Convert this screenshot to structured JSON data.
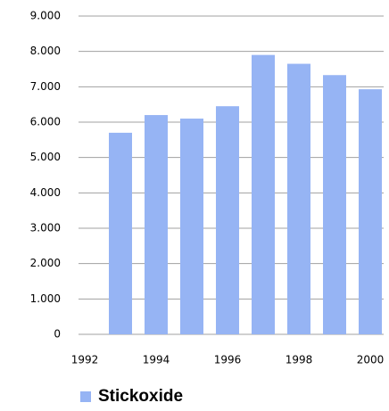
{
  "chart_data": {
    "type": "bar",
    "x": [
      1993,
      1994,
      1995,
      1996,
      1997,
      1998,
      1999,
      2000
    ],
    "series": [
      {
        "name": "Stickoxide",
        "color": "#96b4f4",
        "values": [
          5700,
          6200,
          6100,
          6450,
          7900,
          7650,
          7330,
          6930
        ]
      }
    ],
    "xlim": [
      1992,
      2000
    ],
    "xticks": [
      1992,
      1994,
      1996,
      1998,
      2000
    ],
    "ylim": [
      0,
      9000
    ],
    "yticks": [
      0,
      {
        "value": 1000,
        "label": "1.000"
      },
      {
        "value": 2000,
        "label": "2.000"
      },
      {
        "value": 3000,
        "label": "3.000"
      },
      {
        "value": 4000,
        "label": "4.000"
      },
      {
        "value": 5000,
        "label": "5.000"
      },
      {
        "value": 6000,
        "label": "6.000"
      },
      {
        "value": 7000,
        "label": "7.000"
      },
      {
        "value": 8000,
        "label": "8.000"
      },
      {
        "value": 9000,
        "label": "9.000"
      }
    ],
    "grid": true,
    "legend": "bottom-left"
  }
}
